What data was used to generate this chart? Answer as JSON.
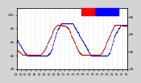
{
  "background_color": "#d4d4d4",
  "plot_bg_color": "#ffffff",
  "humidity_color": "#0000dd",
  "temp_color": "#cc0000",
  "legend_temp_color": "#ff0000",
  "legend_hum_color": "#0000ff",
  "ylim_humidity": [
    20,
    110
  ],
  "ylim_temp": [
    20,
    90
  ],
  "dot_size": 0.8,
  "humidity_data": [
    65,
    64,
    63,
    62,
    61,
    60,
    59,
    58,
    57,
    56,
    55,
    54,
    53,
    52,
    51,
    50,
    49,
    48,
    47,
    46,
    45,
    44,
    43,
    43,
    42,
    42,
    41,
    41,
    41,
    40,
    40,
    40,
    40,
    40,
    40,
    40,
    40,
    40,
    40,
    40,
    40,
    40,
    40,
    40,
    40,
    40,
    40,
    40,
    40,
    40,
    40,
    40,
    40,
    40,
    40,
    40,
    40,
    40,
    40,
    40,
    40,
    40,
    40,
    40,
    40,
    40,
    40,
    40,
    40,
    40,
    40,
    40,
    40,
    40,
    40,
    40,
    40,
    40,
    40,
    40,
    40,
    41,
    41,
    42,
    42,
    43,
    44,
    45,
    46,
    47,
    48,
    50,
    51,
    53,
    55,
    57,
    59,
    61,
    63,
    65,
    67,
    69,
    71,
    73,
    75,
    77,
    78,
    79,
    80,
    81,
    82,
    83,
    84,
    85,
    86,
    87,
    87,
    87,
    87,
    87,
    87,
    87,
    87,
    87,
    87,
    87,
    87,
    87,
    87,
    87,
    87,
    87,
    87,
    87,
    87,
    87,
    87,
    87,
    87,
    87,
    87,
    87,
    87,
    87,
    87,
    87,
    87,
    86,
    85,
    84,
    83,
    82,
    81,
    80,
    79,
    78,
    77,
    76,
    75,
    74,
    73,
    72,
    71,
    70,
    69,
    68,
    67,
    66,
    65,
    64,
    63,
    62,
    61,
    60,
    59,
    58,
    57,
    56,
    55,
    54,
    53,
    52,
    51,
    50,
    49,
    48,
    47,
    46,
    45,
    44,
    43,
    42,
    41,
    40,
    40,
    40,
    40,
    40,
    40,
    40,
    40,
    40,
    40,
    40,
    40,
    40,
    40,
    40,
    40,
    40,
    40,
    40,
    40,
    40,
    40,
    40,
    40,
    40,
    40,
    40,
    40,
    40,
    40,
    40,
    40,
    40,
    40,
    40,
    40,
    40,
    40,
    40,
    40,
    40,
    40,
    40,
    40,
    41,
    41,
    42,
    43,
    44,
    45,
    47,
    49,
    51,
    53,
    55,
    57,
    59,
    61,
    63,
    65,
    67,
    69,
    70,
    71,
    72,
    73,
    74,
    75,
    76,
    77,
    78,
    79,
    80,
    81,
    82,
    83,
    84,
    85,
    85,
    85,
    85,
    85,
    85,
    85,
    85,
    85,
    85,
    85,
    85,
    85,
    85,
    85,
    85,
    85,
    85
  ],
  "temp_data": [
    42,
    42,
    42,
    41,
    41,
    41,
    40,
    40,
    40,
    39,
    39,
    38,
    38,
    37,
    37,
    36,
    36,
    36,
    36,
    36,
    36,
    36,
    36,
    36,
    36,
    36,
    36,
    36,
    36,
    36,
    36,
    36,
    36,
    36,
    36,
    36,
    36,
    36,
    36,
    36,
    36,
    36,
    36,
    36,
    36,
    36,
    36,
    36,
    36,
    36,
    36,
    36,
    36,
    36,
    36,
    36,
    36,
    36,
    36,
    36,
    36,
    36,
    36,
    37,
    37,
    38,
    38,
    39,
    39,
    40,
    40,
    41,
    42,
    42,
    43,
    44,
    45,
    46,
    47,
    48,
    49,
    50,
    51,
    52,
    53,
    54,
    55,
    56,
    57,
    58,
    59,
    60,
    61,
    62,
    63,
    64,
    65,
    66,
    67,
    68,
    68,
    69,
    69,
    70,
    70,
    71,
    71,
    71,
    71,
    71,
    71,
    71,
    71,
    71,
    71,
    71,
    71,
    71,
    71,
    70,
    70,
    70,
    70,
    70,
    70,
    70,
    70,
    70,
    69,
    69,
    69,
    68,
    68,
    67,
    67,
    66,
    65,
    64,
    63,
    62,
    61,
    60,
    59,
    58,
    57,
    56,
    55,
    54,
    53,
    52,
    51,
    50,
    49,
    48,
    47,
    46,
    45,
    44,
    43,
    42,
    41,
    40,
    40,
    39,
    39,
    38,
    38,
    37,
    37,
    36,
    36,
    36,
    36,
    36,
    36,
    36,
    36,
    36,
    36,
    36,
    36,
    36,
    36,
    36,
    36,
    36,
    36,
    36,
    36,
    36,
    36,
    36,
    36,
    36,
    36,
    36,
    36,
    36,
    36,
    36,
    36,
    36,
    36,
    36,
    36,
    36,
    36,
    36,
    36,
    36,
    36,
    36,
    36,
    36,
    36,
    36,
    36,
    36,
    37,
    37,
    38,
    38,
    39,
    40,
    41,
    42,
    43,
    44,
    45,
    46,
    47,
    48,
    49,
    50,
    51,
    52,
    53,
    54,
    55,
    56,
    57,
    58,
    59,
    60,
    61,
    62,
    63,
    64,
    65,
    66,
    67,
    68,
    69,
    70,
    71,
    71,
    71,
    71,
    71,
    71,
    71,
    71,
    71,
    71,
    71,
    71,
    71,
    71,
    71,
    71,
    71,
    71,
    71,
    71,
    70,
    70,
    70,
    70,
    70,
    70,
    70,
    70,
    70,
    70,
    70,
    70,
    70,
    70
  ],
  "n_grid_lines": 24,
  "yticks_left": [
    20,
    40,
    60,
    80,
    100
  ],
  "yticks_right": [
    20,
    40,
    60,
    80
  ],
  "x_label_count": 24
}
